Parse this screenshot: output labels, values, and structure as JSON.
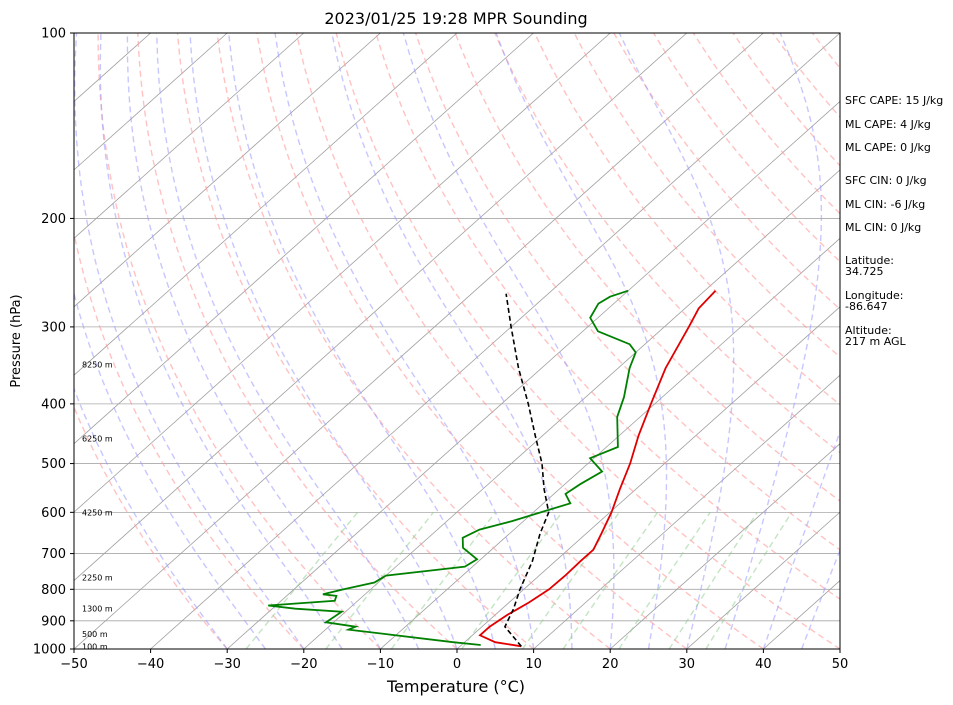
{
  "chart_data": {
    "type": "line",
    "title": "2023/01/25 19:28 MPR Sounding",
    "xlabel": "Temperature (°C)",
    "ylabel": "Pressure (hPa)",
    "xlim": [
      -50,
      50
    ],
    "ylim": [
      1000,
      100
    ],
    "yscale": "log",
    "x_ticks": [
      -50,
      -40,
      -30,
      -20,
      -10,
      0,
      10,
      20,
      30,
      40,
      50
    ],
    "y_ticks": [
      1000,
      900,
      800,
      700,
      600,
      500,
      400,
      300,
      200,
      100
    ],
    "grid": true,
    "series": [
      {
        "name": "Temperature",
        "color": "#e00000",
        "points": [
          [
            8.0,
            990
          ],
          [
            4.0,
            975
          ],
          [
            1.0,
            950
          ],
          [
            1.0,
            920
          ],
          [
            1.6,
            880
          ],
          [
            2.1,
            860
          ],
          [
            2.6,
            840
          ],
          [
            3.3,
            800
          ],
          [
            3.4,
            760
          ],
          [
            3.3,
            720
          ],
          [
            3.3,
            690
          ],
          [
            2.0,
            650
          ],
          [
            0.2,
            600
          ],
          [
            -2.1,
            550
          ],
          [
            -4.5,
            500
          ],
          [
            -7.5,
            450
          ],
          [
            -10.5,
            400
          ],
          [
            -13.8,
            350
          ],
          [
            -16.8,
            300
          ],
          [
            -18.2,
            280
          ],
          [
            -18.6,
            262
          ]
        ]
      },
      {
        "name": "Dewpoint",
        "color": "#008000",
        "points": [
          [
            2.5,
            985
          ],
          [
            -1.5,
            975
          ],
          [
            -17.0,
            930
          ],
          [
            -16.5,
            920
          ],
          [
            -21.0,
            905
          ],
          [
            -20.5,
            870
          ],
          [
            -27.0,
            860
          ],
          [
            -31.0,
            850
          ],
          [
            -23.0,
            835
          ],
          [
            -23.5,
            820
          ],
          [
            -25.5,
            815
          ],
          [
            -23.5,
            800
          ],
          [
            -20.5,
            780
          ],
          [
            -20.0,
            760
          ],
          [
            -11.0,
            735
          ],
          [
            -10.5,
            715
          ],
          [
            -14.0,
            685
          ],
          [
            -15.5,
            660
          ],
          [
            -14.5,
            640
          ],
          [
            -11.5,
            620
          ],
          [
            -6.5,
            580
          ],
          [
            -8.5,
            560
          ],
          [
            -8.0,
            540
          ],
          [
            -7.0,
            515
          ],
          [
            -10.5,
            490
          ],
          [
            -8.5,
            470
          ],
          [
            -13.0,
            420
          ],
          [
            -15.0,
            390
          ],
          [
            -18.5,
            350
          ],
          [
            -20.0,
            330
          ],
          [
            -22.0,
            320
          ],
          [
            -28.0,
            305
          ],
          [
            -31.0,
            290
          ],
          [
            -32.0,
            275
          ],
          [
            -31.5,
            268
          ],
          [
            -30.0,
            262
          ]
        ]
      },
      {
        "name": "Parcel",
        "color": "#000000",
        "points": [
          [
            8.0,
            990
          ],
          [
            3.0,
            920
          ],
          [
            1.5,
            860
          ],
          [
            -0.5,
            800
          ],
          [
            -3.0,
            720
          ],
          [
            -6.0,
            650
          ],
          [
            -8.0,
            600
          ],
          [
            -12.0,
            550
          ],
          [
            -16.0,
            500
          ],
          [
            -21.0,
            450
          ],
          [
            -26.5,
            400
          ],
          [
            -33.0,
            350
          ],
          [
            -40.0,
            300
          ],
          [
            -45.5,
            265
          ]
        ]
      }
    ],
    "height_labels": [
      {
        "text": "100 m",
        "p": 990
      },
      {
        "text": "500 m",
        "p": 945
      },
      {
        "text": "1300 m",
        "p": 860
      },
      {
        "text": "2250 m",
        "p": 765
      },
      {
        "text": "4250 m",
        "p": 600
      },
      {
        "text": "6250 m",
        "p": 455
      },
      {
        "text": "8250 m",
        "p": 345
      }
    ],
    "side_text": [
      "SFC CAPE: 15 J/kg",
      "ML CAPE: 4 J/kg",
      "ML CAPE: 0 J/kg",
      "SFC CIN: 0 J/kg",
      "ML CIN: -6 J/kg",
      "ML CIN: 0 J/kg",
      "Latitude:",
      "34.725",
      "Longitude:",
      "-86.647",
      "Altitude:",
      "217 m AGL"
    ],
    "colors": {
      "isotherm": "#a0a0a0",
      "dry_adiabat": "#ff9999",
      "moist_adiabat": "#9999ff",
      "mixing_ratio": "#88cc88"
    }
  }
}
